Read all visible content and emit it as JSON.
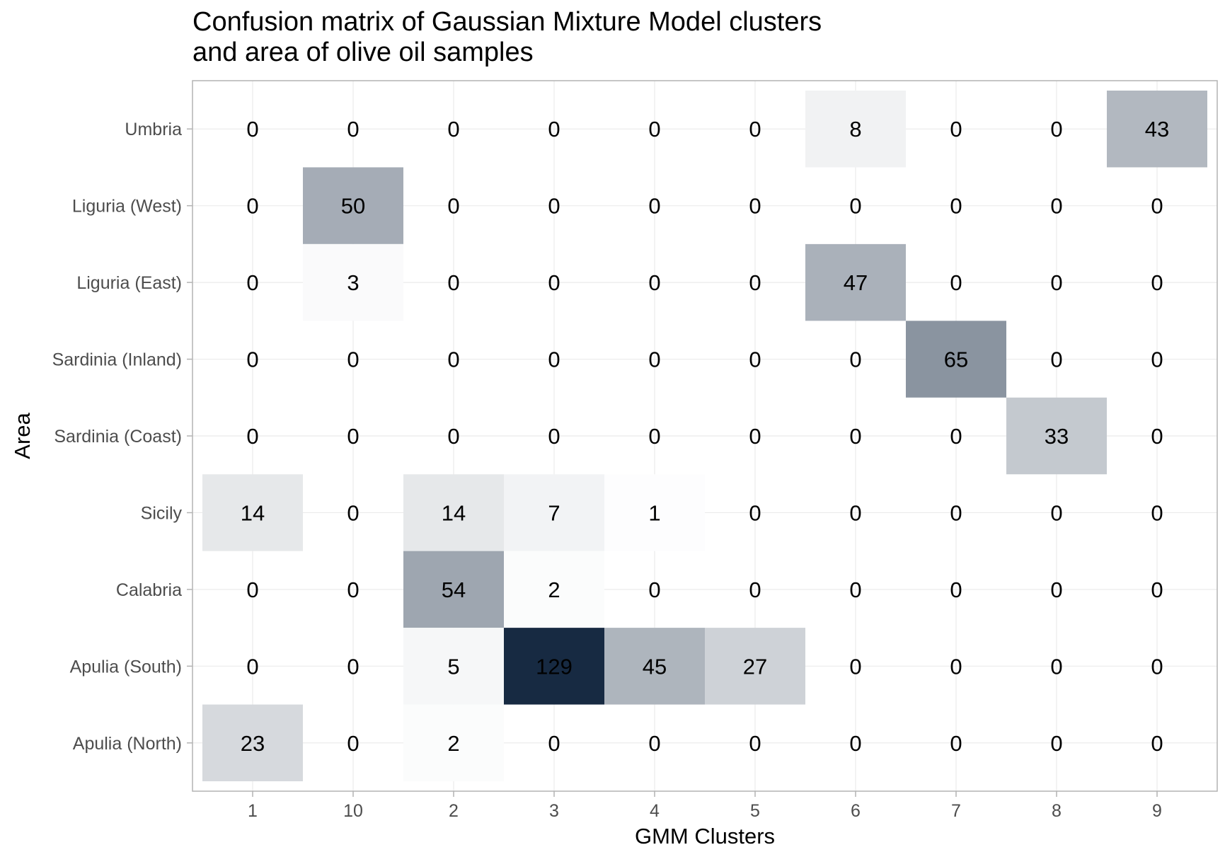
{
  "chart_data": {
    "type": "heatmap",
    "title_lines": [
      "Confusion matrix of Gaussian Mixture Model clusters",
      "and area of olive oil samples"
    ],
    "xlabel": "GMM Clusters",
    "ylabel": "Area",
    "x_categories": [
      "1",
      "10",
      "2",
      "3",
      "4",
      "5",
      "6",
      "7",
      "8",
      "9"
    ],
    "y_categories": [
      "Umbria",
      "Liguria (West)",
      "Liguria (East)",
      "Sardinia (Inland)",
      "Sardinia (Coast)",
      "Sicily",
      "Calabria",
      "Apulia (South)",
      "Apulia (North)"
    ],
    "values": [
      [
        0,
        0,
        0,
        0,
        0,
        0,
        8,
        0,
        0,
        43
      ],
      [
        0,
        50,
        0,
        0,
        0,
        0,
        0,
        0,
        0,
        0
      ],
      [
        0,
        3,
        0,
        0,
        0,
        0,
        47,
        0,
        0,
        0
      ],
      [
        0,
        0,
        0,
        0,
        0,
        0,
        0,
        65,
        0,
        0
      ],
      [
        0,
        0,
        0,
        0,
        0,
        0,
        0,
        0,
        33,
        0
      ],
      [
        14,
        0,
        14,
        7,
        1,
        0,
        0,
        0,
        0,
        0
      ],
      [
        0,
        0,
        54,
        2,
        0,
        0,
        0,
        0,
        0,
        0
      ],
      [
        0,
        0,
        5,
        129,
        45,
        27,
        0,
        0,
        0,
        0
      ],
      [
        23,
        0,
        2,
        0,
        0,
        0,
        0,
        0,
        0,
        0
      ]
    ],
    "color_scale": {
      "low": "#ffffff",
      "high": "#172a42",
      "min": 0,
      "max": 129
    },
    "grid": true,
    "legend": "none"
  }
}
